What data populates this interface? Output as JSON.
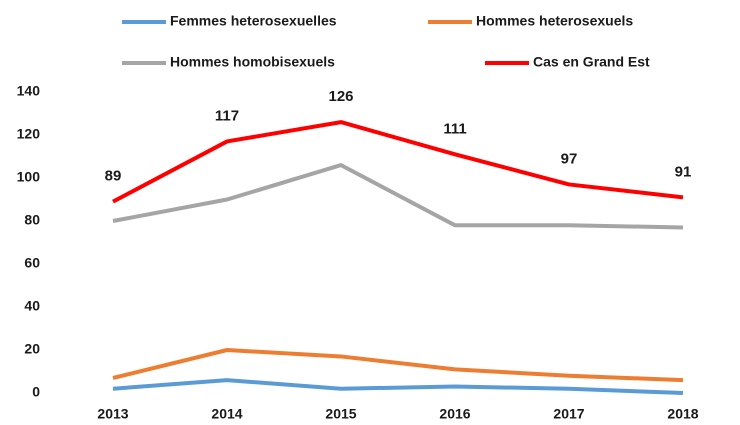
{
  "chart_data": {
    "type": "line",
    "categories": [
      "2013",
      "2014",
      "2015",
      "2016",
      "2017",
      "2018"
    ],
    "series": [
      {
        "name": "Femmes heterosexuelles",
        "color": "#5b9bd5",
        "values": [
          2,
          6,
          2,
          3,
          2,
          0
        ]
      },
      {
        "name": "Hommes heterosexuels",
        "color": "#ed7d31",
        "values": [
          7,
          20,
          17,
          11,
          8,
          6
        ]
      },
      {
        "name": "Hommes homobisexuels",
        "color": "#a5a5a5",
        "values": [
          80,
          90,
          106,
          78,
          78,
          77
        ]
      },
      {
        "name": "Cas en Grand Est",
        "color": "#ff0000",
        "values": [
          89,
          117,
          126,
          111,
          97,
          91
        ],
        "show_values": true
      }
    ],
    "ylim": [
      0,
      140
    ],
    "yticks": [
      0,
      20,
      40,
      60,
      80,
      100,
      120,
      140
    ],
    "grid": false,
    "legend": "top"
  }
}
